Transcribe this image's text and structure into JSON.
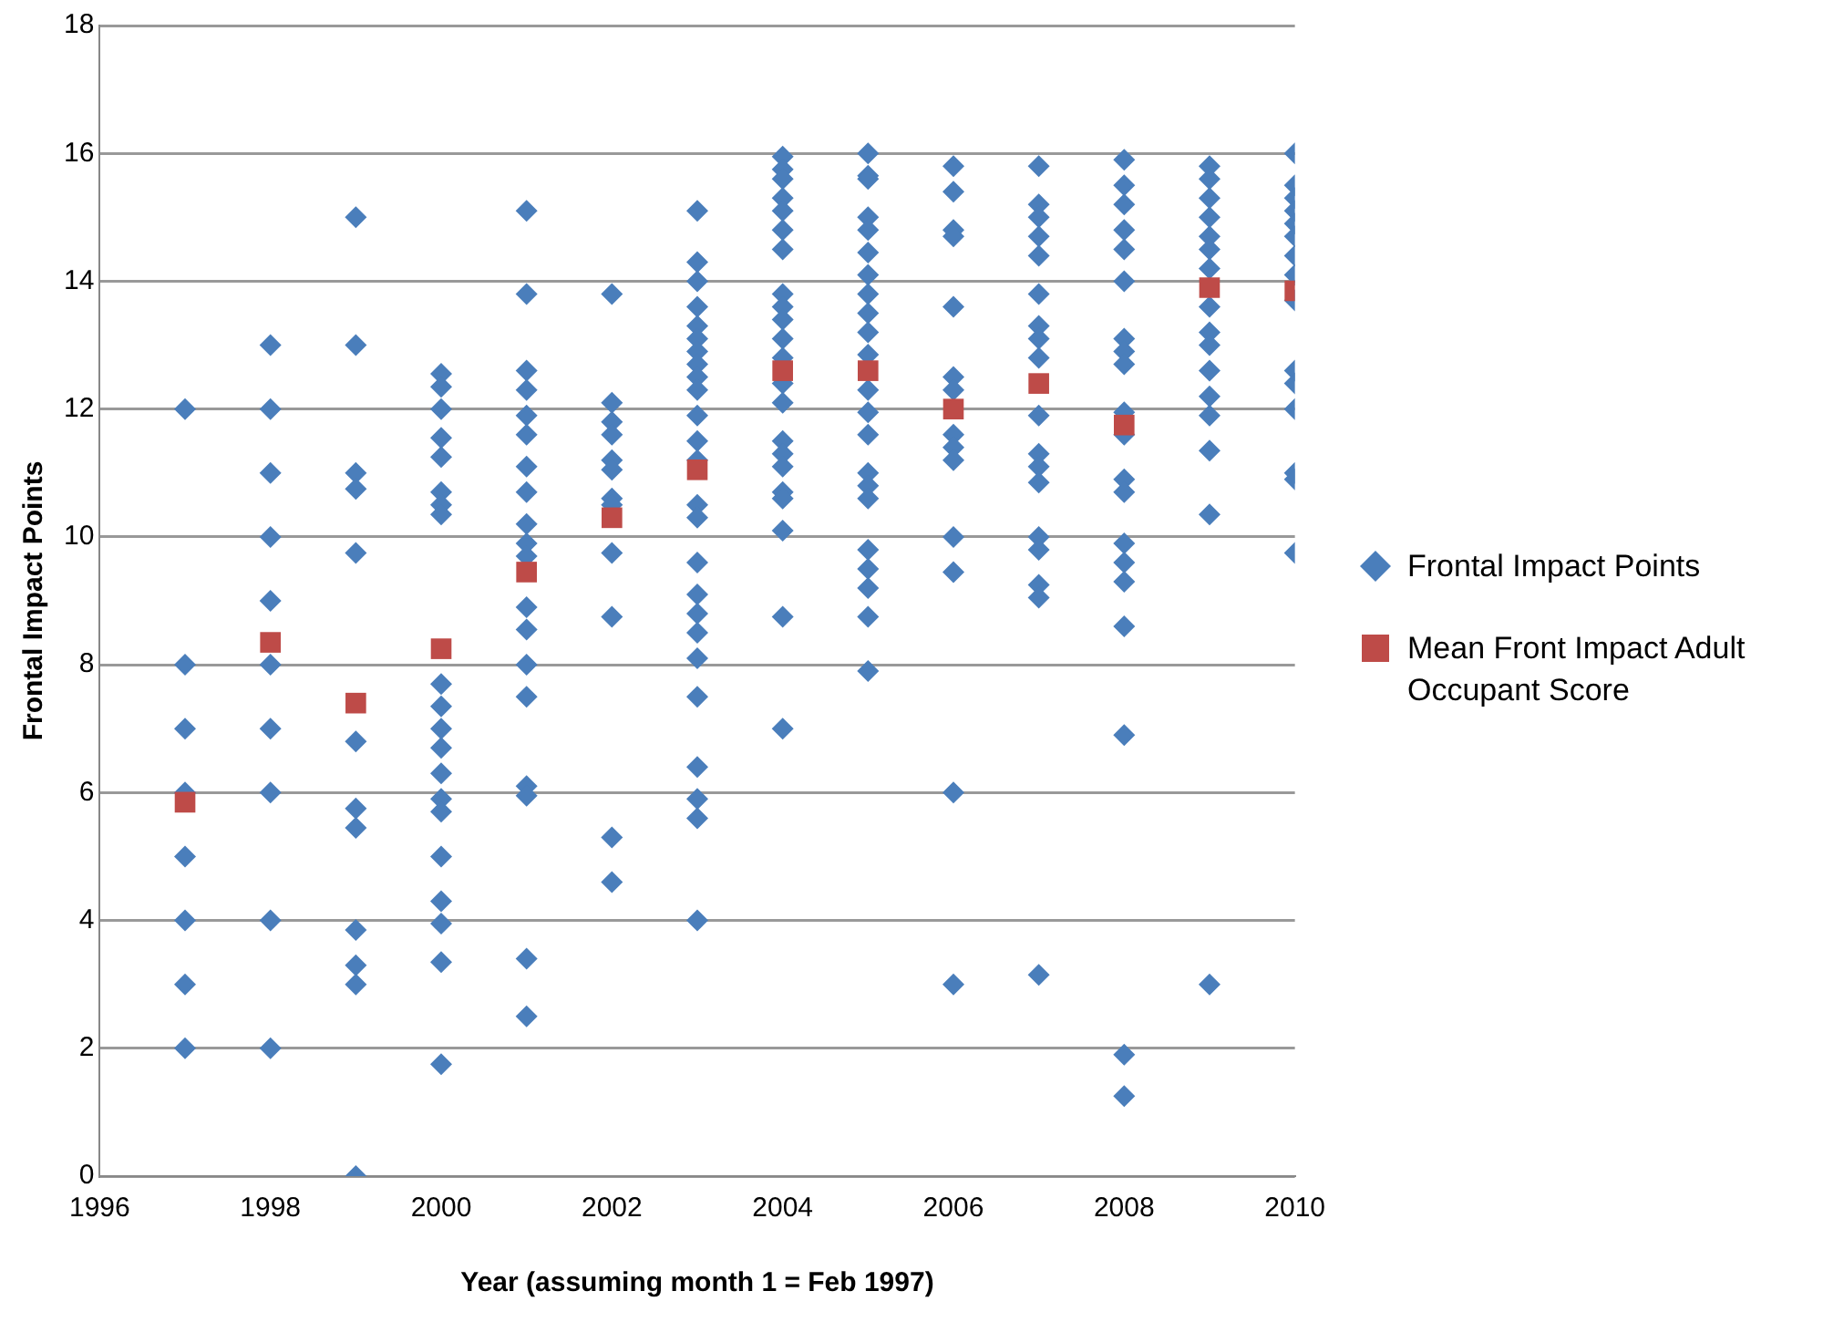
{
  "chart_data": {
    "type": "scatter",
    "xlabel": "Year (assuming month 1 = Feb 1997)",
    "ylabel": "Frontal Impact Points",
    "xlim": [
      1996,
      2010
    ],
    "xticks": [
      1996,
      1998,
      2000,
      2002,
      2004,
      2006,
      2008,
      2010
    ],
    "ylim": [
      0,
      18
    ],
    "yticks": [
      0,
      2,
      4,
      6,
      8,
      10,
      12,
      14,
      16,
      18
    ],
    "grid": "y",
    "legend": "right",
    "series": [
      {
        "name": "Frontal Impact Points",
        "color": "#4a7ebb",
        "marker": "diamond",
        "x": [
          1997,
          1997,
          1997,
          1997,
          1997,
          1997,
          1997,
          1997,
          1998,
          1998,
          1998,
          1998,
          1998,
          1998,
          1998,
          1998,
          1998,
          1998,
          1999,
          1999,
          1999,
          1999,
          1999,
          1999,
          1999,
          1999,
          1999,
          1999,
          1999,
          1999,
          2000,
          2000,
          2000,
          2000,
          2000,
          2000,
          2000,
          2000,
          2000,
          2000,
          2000,
          2000,
          2000,
          2000,
          2000,
          2000,
          2000,
          2000,
          2000,
          2000,
          2001,
          2001,
          2001,
          2001,
          2001,
          2001,
          2001,
          2001,
          2001,
          2001,
          2001,
          2001,
          2001,
          2001,
          2001,
          2001,
          2001,
          2001,
          2001,
          2002,
          2002,
          2002,
          2002,
          2002,
          2002,
          2002,
          2002,
          2002,
          2002,
          2002,
          2002,
          2003,
          2003,
          2003,
          2003,
          2003,
          2003,
          2003,
          2003,
          2003,
          2003,
          2003,
          2003,
          2003,
          2003,
          2003,
          2003,
          2003,
          2003,
          2003,
          2003,
          2003,
          2003,
          2003,
          2003,
          2003,
          2004,
          2004,
          2004,
          2004,
          2004,
          2004,
          2004,
          2004,
          2004,
          2004,
          2004,
          2004,
          2004,
          2004,
          2004,
          2004,
          2004,
          2004,
          2004,
          2004,
          2004,
          2004,
          2005,
          2005,
          2005,
          2005,
          2005,
          2005,
          2005,
          2005,
          2005,
          2005,
          2005,
          2005,
          2005,
          2005,
          2005,
          2005,
          2005,
          2005,
          2005,
          2005,
          2005,
          2005,
          2006,
          2006,
          2006,
          2006,
          2006,
          2006,
          2006,
          2006,
          2006,
          2006,
          2006,
          2006,
          2006,
          2006,
          2007,
          2007,
          2007,
          2007,
          2007,
          2007,
          2007,
          2007,
          2007,
          2007,
          2007,
          2007,
          2007,
          2007,
          2007,
          2007,
          2007,
          2007,
          2008,
          2008,
          2008,
          2008,
          2008,
          2008,
          2008,
          2008,
          2008,
          2008,
          2008,
          2008,
          2008,
          2008,
          2008,
          2008,
          2008,
          2008,
          2008,
          2008,
          2009,
          2009,
          2009,
          2009,
          2009,
          2009,
          2009,
          2009,
          2009,
          2009,
          2009,
          2009,
          2009,
          2009,
          2009,
          2009,
          2010,
          2010,
          2010,
          2010,
          2010,
          2010,
          2010,
          2010,
          2010,
          2010,
          2010,
          2010,
          2010,
          2010,
          2010
        ],
        "values": [
          12,
          8,
          7,
          6,
          5,
          4,
          3,
          2,
          13,
          12,
          11,
          10,
          9,
          8,
          7,
          6,
          4,
          2,
          15,
          13,
          11,
          10.75,
          9.75,
          6.8,
          5.75,
          5.45,
          3.85,
          3.3,
          3,
          0,
          12.55,
          12.35,
          12,
          11.55,
          11.25,
          10.7,
          10.5,
          10.35,
          7.7,
          7.35,
          7,
          6.7,
          6.3,
          5.9,
          5.7,
          5,
          4.3,
          3.95,
          3.35,
          1.75,
          15.1,
          13.8,
          12.6,
          12.3,
          11.9,
          11.6,
          11.1,
          10.7,
          10.2,
          9.9,
          9.7,
          8.9,
          8.55,
          8,
          7.5,
          6.1,
          5.95,
          3.4,
          2.5,
          13.8,
          12.1,
          11.8,
          11.6,
          11.2,
          11.05,
          10.6,
          10.5,
          9.75,
          8.75,
          5.3,
          4.6,
          15.1,
          14.3,
          14,
          13.6,
          13.3,
          13.1,
          12.9,
          12.7,
          12.5,
          12.3,
          11.9,
          11.5,
          11.2,
          10.5,
          10.3,
          9.6,
          9.1,
          8.8,
          8.5,
          8.1,
          7.5,
          6.4,
          5.9,
          5.6,
          4,
          15.95,
          15.75,
          15.6,
          15.3,
          15.1,
          14.8,
          14.5,
          13.8,
          13.6,
          13.4,
          13.1,
          12.8,
          12.4,
          12.1,
          11.5,
          11.3,
          11.1,
          10.7,
          10.6,
          10.1,
          8.75,
          7,
          16,
          15.65,
          15.6,
          15,
          14.8,
          14.45,
          14.1,
          13.8,
          13.5,
          13.2,
          12.85,
          12.3,
          11.95,
          11.6,
          11,
          10.8,
          10.6,
          9.8,
          9.5,
          9.2,
          8.75,
          7.9,
          15.8,
          15.4,
          14.8,
          14.7,
          13.6,
          12.5,
          12.3,
          11.6,
          11.4,
          11.2,
          10,
          9.45,
          6,
          3,
          15.8,
          15.2,
          15,
          14.7,
          14.4,
          13.8,
          13.3,
          13.1,
          12.8,
          11.9,
          11.3,
          11.1,
          10.85,
          10,
          9.8,
          9.25,
          9.05,
          3.15,
          15.9,
          15.5,
          15.2,
          14.8,
          14.5,
          14,
          13.1,
          12.9,
          12.7,
          11.95,
          11.6,
          10.9,
          10.7,
          9.9,
          9.6,
          9.3,
          8.6,
          6.9,
          1.9,
          1.25,
          15.8,
          15.6,
          15.3,
          15,
          14.7,
          14.5,
          14.2,
          13.6,
          13.2,
          13,
          12.6,
          12.2,
          11.9,
          11.35,
          10.35,
          3,
          16,
          15.5,
          15.3,
          15.1,
          14.9,
          14.7,
          14.4,
          14.1,
          13.7,
          12.6,
          12.4,
          12,
          11,
          10.9,
          9.75
        ]
      },
      {
        "name": "Mean Front Impact Adult Occupant Score",
        "color": "#be4b48",
        "marker": "square",
        "x": [
          1997,
          1998,
          1999,
          2000,
          2001,
          2002,
          2003,
          2004,
          2005,
          2006,
          2007,
          2008,
          2009,
          2010
        ],
        "values": [
          5.85,
          8.35,
          7.4,
          8.25,
          9.45,
          10.3,
          11.05,
          12.6,
          12.6,
          12.0,
          12.4,
          11.75,
          13.9,
          13.85
        ]
      }
    ]
  }
}
